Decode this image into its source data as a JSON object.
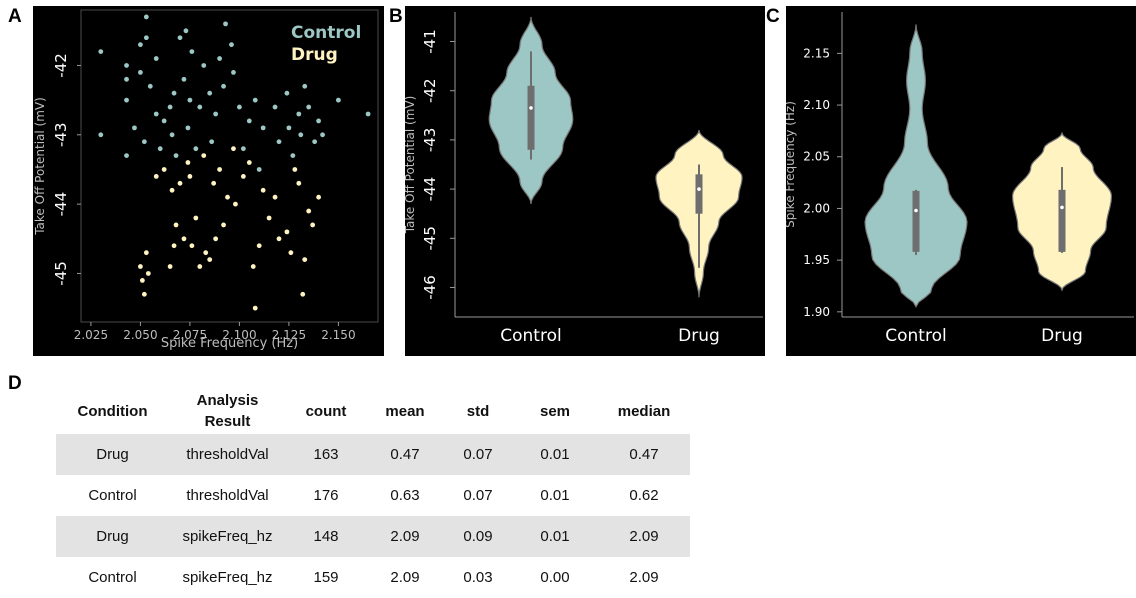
{
  "panels": {
    "a": "A",
    "b": "B",
    "c": "C",
    "d": "D"
  },
  "colors": {
    "control": "#9cc7c4",
    "drug": "#fff3c2",
    "background": "#000000",
    "axis": "#9a9a9a",
    "box": "#6e6e6e"
  },
  "chart_data": [
    {
      "type": "scatter",
      "panel": "A",
      "xlabel": "Spike Frequency (Hz)",
      "ylabel": "Take Off Potential (mV)",
      "xlim": [
        2.02,
        2.17
      ],
      "ylim": [
        -45.7,
        -41.2
      ],
      "x_ticks": [
        "2.025",
        "2.050",
        "2.075",
        "2.100",
        "2.125",
        "2.150"
      ],
      "y_ticks": [
        "-42",
        "-43",
        "-44",
        "-45"
      ],
      "legend": [
        "Control",
        "Drug"
      ],
      "legend_position": "top-right",
      "series": [
        {
          "name": "Control",
          "points": [
            [
              2.03,
              -41.8
            ],
            [
              2.03,
              -43.0
            ],
            [
              2.043,
              -42.0
            ],
            [
              2.043,
              -42.2
            ],
            [
              2.043,
              -42.5
            ],
            [
              2.043,
              -43.3
            ],
            [
              2.047,
              -42.9
            ],
            [
              2.05,
              -41.7
            ],
            [
              2.05,
              -42.1
            ],
            [
              2.052,
              -43.1
            ],
            [
              2.053,
              -41.3
            ],
            [
              2.053,
              -41.6
            ],
            [
              2.055,
              -42.3
            ],
            [
              2.058,
              -41.9
            ],
            [
              2.058,
              -42.7
            ],
            [
              2.06,
              -43.2
            ],
            [
              2.062,
              -42.8
            ],
            [
              2.065,
              -42.6
            ],
            [
              2.066,
              -43.0
            ],
            [
              2.067,
              -42.4
            ],
            [
              2.068,
              -43.3
            ],
            [
              2.07,
              -41.6
            ],
            [
              2.072,
              -42.2
            ],
            [
              2.073,
              -41.5
            ],
            [
              2.074,
              -42.9
            ],
            [
              2.075,
              -42.5
            ],
            [
              2.076,
              -41.8
            ],
            [
              2.078,
              -43.2
            ],
            [
              2.08,
              -42.6
            ],
            [
              2.082,
              -42.0
            ],
            [
              2.085,
              -42.4
            ],
            [
              2.086,
              -43.1
            ],
            [
              2.088,
              -42.7
            ],
            [
              2.09,
              -41.9
            ],
            [
              2.092,
              -42.3
            ],
            [
              2.093,
              -41.4
            ],
            [
              2.096,
              -41.7
            ],
            [
              2.097,
              -42.1
            ],
            [
              2.1,
              -42.6
            ],
            [
              2.102,
              -43.2
            ],
            [
              2.105,
              -42.8
            ],
            [
              2.108,
              -42.5
            ],
            [
              2.11,
              -43.5
            ],
            [
              2.112,
              -42.9
            ],
            [
              2.118,
              -42.6
            ],
            [
              2.12,
              -43.1
            ],
            [
              2.124,
              -42.4
            ],
            [
              2.125,
              -42.9
            ],
            [
              2.127,
              -43.3
            ],
            [
              2.13,
              -42.7
            ],
            [
              2.131,
              -43.0
            ],
            [
              2.133,
              -42.3
            ],
            [
              2.135,
              -42.6
            ],
            [
              2.138,
              -43.1
            ],
            [
              2.14,
              -42.8
            ],
            [
              2.142,
              -43.0
            ],
            [
              2.15,
              -42.5
            ],
            [
              2.165,
              -42.7
            ]
          ]
        },
        {
          "name": "Drug",
          "points": [
            [
              2.05,
              -44.9
            ],
            [
              2.051,
              -45.1
            ],
            [
              2.052,
              -45.3
            ],
            [
              2.053,
              -44.7
            ],
            [
              2.054,
              -45.0
            ],
            [
              2.058,
              -43.6
            ],
            [
              2.062,
              -43.5
            ],
            [
              2.065,
              -44.9
            ],
            [
              2.066,
              -43.8
            ],
            [
              2.067,
              -44.6
            ],
            [
              2.068,
              -44.3
            ],
            [
              2.07,
              -43.7
            ],
            [
              2.072,
              -44.5
            ],
            [
              2.074,
              -43.4
            ],
            [
              2.075,
              -43.6
            ],
            [
              2.076,
              -44.6
            ],
            [
              2.078,
              -44.2
            ],
            [
              2.08,
              -44.9
            ],
            [
              2.082,
              -43.3
            ],
            [
              2.083,
              -44.7
            ],
            [
              2.085,
              -44.8
            ],
            [
              2.087,
              -43.7
            ],
            [
              2.088,
              -44.5
            ],
            [
              2.09,
              -43.5
            ],
            [
              2.092,
              -44.3
            ],
            [
              2.094,
              -43.9
            ],
            [
              2.097,
              -43.2
            ],
            [
              2.098,
              -44.0
            ],
            [
              2.102,
              -43.6
            ],
            [
              2.105,
              -43.4
            ],
            [
              2.107,
              -44.9
            ],
            [
              2.108,
              -45.5
            ],
            [
              2.11,
              -44.6
            ],
            [
              2.112,
              -43.8
            ],
            [
              2.115,
              -44.2
            ],
            [
              2.118,
              -43.9
            ],
            [
              2.12,
              -44.5
            ],
            [
              2.124,
              -44.4
            ],
            [
              2.126,
              -44.7
            ],
            [
              2.128,
              -43.5
            ],
            [
              2.13,
              -43.7
            ],
            [
              2.132,
              -45.3
            ],
            [
              2.133,
              -44.8
            ],
            [
              2.135,
              -44.1
            ],
            [
              2.137,
              -44.3
            ],
            [
              2.14,
              -43.9
            ]
          ]
        }
      ]
    },
    {
      "type": "violin",
      "panel": "B",
      "ylabel": "Take Off Potential (mV)",
      "categories": [
        "Control",
        "Drug"
      ],
      "ylim": [
        -46.6,
        -40.4
      ],
      "y_ticks": [
        "-41",
        "-42",
        "-43",
        "-44",
        "-45",
        "-46"
      ],
      "series": [
        {
          "name": "Control",
          "range": [
            -44.3,
            -40.5
          ],
          "q1": -43.2,
          "median": -42.35,
          "q3": -41.9,
          "whisker": [
            -43.4,
            -41.2
          ]
        },
        {
          "name": "Drug",
          "range": [
            -46.2,
            -42.8
          ],
          "q1": -44.5,
          "median": -44.0,
          "q3": -43.7,
          "whisker": [
            -45.6,
            -43.5
          ]
        }
      ]
    },
    {
      "type": "violin",
      "panel": "C",
      "ylabel": "Spike Frequency (Hz)",
      "categories": [
        "Control",
        "Drug"
      ],
      "ylim": [
        1.895,
        2.19
      ],
      "y_ticks": [
        "2.15",
        "2.10",
        "2.05",
        "2.00",
        "1.95",
        "1.90"
      ],
      "series": [
        {
          "name": "Control",
          "range": [
            1.905,
            2.178
          ],
          "q1": 1.958,
          "median": 1.998,
          "q3": 2.017,
          "whisker": [
            1.955,
            2.018
          ]
        },
        {
          "name": "Drug",
          "range": [
            1.921,
            2.073
          ],
          "q1": 1.958,
          "median": 2.001,
          "q3": 2.018,
          "whisker": [
            1.957,
            2.04
          ]
        }
      ]
    },
    {
      "type": "table",
      "panel": "D",
      "columns": [
        "Condition",
        "Analysis Result",
        "count",
        "mean",
        "std",
        "sem",
        "median"
      ],
      "rows": [
        [
          "Drug",
          "thresholdVal",
          "163",
          "0.47",
          "0.07",
          "0.01",
          "0.47"
        ],
        [
          "Control",
          "thresholdVal",
          "176",
          "0.63",
          "0.07",
          "0.01",
          "0.62"
        ],
        [
          "Drug",
          "spikeFreq_hz",
          "148",
          "2.09",
          "0.09",
          "0.01",
          "2.09"
        ],
        [
          "Control",
          "spikeFreq_hz",
          "159",
          "2.09",
          "0.03",
          "0.00",
          "2.09"
        ]
      ]
    }
  ]
}
